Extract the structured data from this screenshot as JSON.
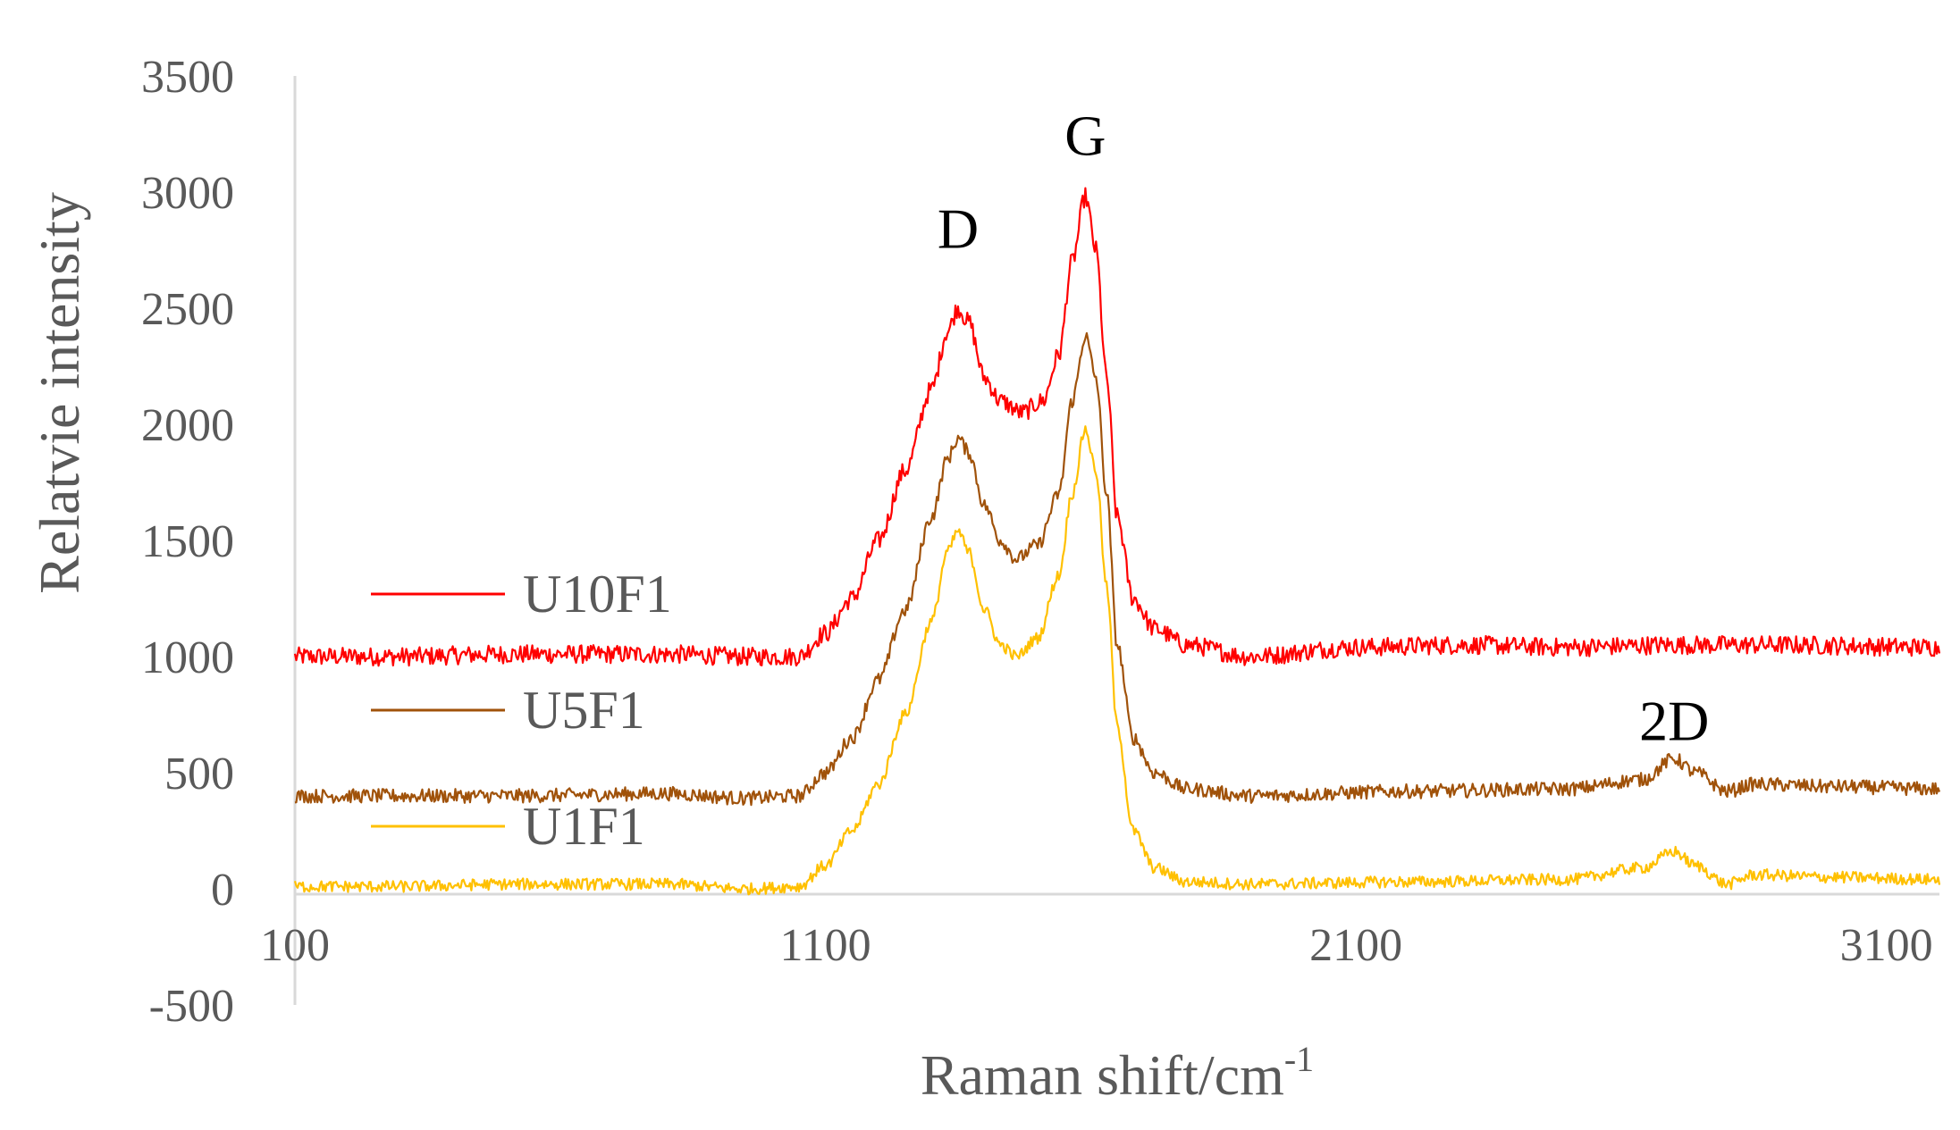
{
  "chart_data": {
    "type": "line",
    "title": "",
    "xlabel": "Raman shift/cm",
    "xlabel_superscript": "-1",
    "ylabel": "Relatvie intensity",
    "xlim": [
      100,
      3200
    ],
    "ylim": [
      -500,
      3500
    ],
    "x_ticks": [
      100,
      1100,
      2100,
      3100
    ],
    "x_tick_labels": [
      "100",
      "1100",
      "2100",
      "3100"
    ],
    "y_ticks": [
      -500,
      0,
      500,
      1000,
      1500,
      2000,
      2500,
      3000,
      3500
    ],
    "y_tick_labels": [
      "-500",
      "0",
      "500",
      "1000",
      "1500",
      "2000",
      "2500",
      "3000",
      "3500"
    ],
    "grid": false,
    "legend_position": "left",
    "peak_annotations": [
      {
        "label": "D",
        "x": 1350,
        "y": 2760
      },
      {
        "label": "G",
        "x": 1590,
        "y": 3160
      },
      {
        "label": "2D",
        "x": 2700,
        "y": 640
      }
    ],
    "series": [
      {
        "name": "U10F1",
        "color": "#FF0000",
        "noise": 40,
        "points": [
          [
            100,
            1000
          ],
          [
            300,
            1000
          ],
          [
            500,
            1010
          ],
          [
            800,
            1010
          ],
          [
            950,
            1000
          ],
          [
            1050,
            1000
          ],
          [
            1100,
            1100
          ],
          [
            1150,
            1250
          ],
          [
            1200,
            1500
          ],
          [
            1250,
            1800
          ],
          [
            1300,
            2150
          ],
          [
            1330,
            2400
          ],
          [
            1350,
            2500
          ],
          [
            1370,
            2440
          ],
          [
            1400,
            2200
          ],
          [
            1430,
            2100
          ],
          [
            1470,
            2050
          ],
          [
            1510,
            2100
          ],
          [
            1540,
            2300
          ],
          [
            1565,
            2700
          ],
          [
            1590,
            2980
          ],
          [
            1610,
            2750
          ],
          [
            1630,
            2200
          ],
          [
            1650,
            1600
          ],
          [
            1680,
            1250
          ],
          [
            1720,
            1120
          ],
          [
            1780,
            1050
          ],
          [
            1900,
            1000
          ],
          [
            2100,
            1040
          ],
          [
            2300,
            1050
          ],
          [
            2500,
            1040
          ],
          [
            2700,
            1050
          ],
          [
            2900,
            1050
          ],
          [
            3200,
            1040
          ]
        ]
      },
      {
        "name": "U5F1",
        "color": "#A0520A",
        "noise": 30,
        "points": [
          [
            100,
            400
          ],
          [
            300,
            400
          ],
          [
            500,
            400
          ],
          [
            800,
            410
          ],
          [
            950,
            390
          ],
          [
            1050,
            400
          ],
          [
            1100,
            500
          ],
          [
            1150,
            650
          ],
          [
            1200,
            900
          ],
          [
            1250,
            1200
          ],
          [
            1300,
            1600
          ],
          [
            1330,
            1850
          ],
          [
            1350,
            1940
          ],
          [
            1370,
            1880
          ],
          [
            1400,
            1650
          ],
          [
            1430,
            1500
          ],
          [
            1460,
            1420
          ],
          [
            1500,
            1480
          ],
          [
            1540,
            1700
          ],
          [
            1565,
            2100
          ],
          [
            1590,
            2380
          ],
          [
            1610,
            2200
          ],
          [
            1630,
            1700
          ],
          [
            1650,
            1050
          ],
          [
            1680,
            650
          ],
          [
            1720,
            500
          ],
          [
            1780,
            430
          ],
          [
            1900,
            400
          ],
          [
            2200,
            420
          ],
          [
            2500,
            430
          ],
          [
            2640,
            470
          ],
          [
            2700,
            560
          ],
          [
            2740,
            500
          ],
          [
            2800,
            420
          ],
          [
            2850,
            450
          ],
          [
            3000,
            440
          ],
          [
            3200,
            430
          ]
        ]
      },
      {
        "name": "U1F1",
        "color": "#FFC000",
        "noise": 25,
        "points": [
          [
            100,
            10
          ],
          [
            300,
            10
          ],
          [
            500,
            20
          ],
          [
            800,
            20
          ],
          [
            950,
            0
          ],
          [
            1050,
            10
          ],
          [
            1100,
            100
          ],
          [
            1150,
            250
          ],
          [
            1200,
            450
          ],
          [
            1250,
            750
          ],
          [
            1300,
            1150
          ],
          [
            1330,
            1450
          ],
          [
            1350,
            1540
          ],
          [
            1370,
            1450
          ],
          [
            1400,
            1200
          ],
          [
            1430,
            1050
          ],
          [
            1460,
            1000
          ],
          [
            1500,
            1080
          ],
          [
            1540,
            1350
          ],
          [
            1565,
            1700
          ],
          [
            1590,
            1980
          ],
          [
            1610,
            1800
          ],
          [
            1630,
            1300
          ],
          [
            1650,
            700
          ],
          [
            1680,
            250
          ],
          [
            1720,
            90
          ],
          [
            1780,
            30
          ],
          [
            1900,
            20
          ],
          [
            2200,
            30
          ],
          [
            2500,
            40
          ],
          [
            2640,
            90
          ],
          [
            2700,
            160
          ],
          [
            2740,
            100
          ],
          [
            2800,
            20
          ],
          [
            2850,
            60
          ],
          [
            3000,
            50
          ],
          [
            3200,
            40
          ]
        ]
      }
    ]
  }
}
